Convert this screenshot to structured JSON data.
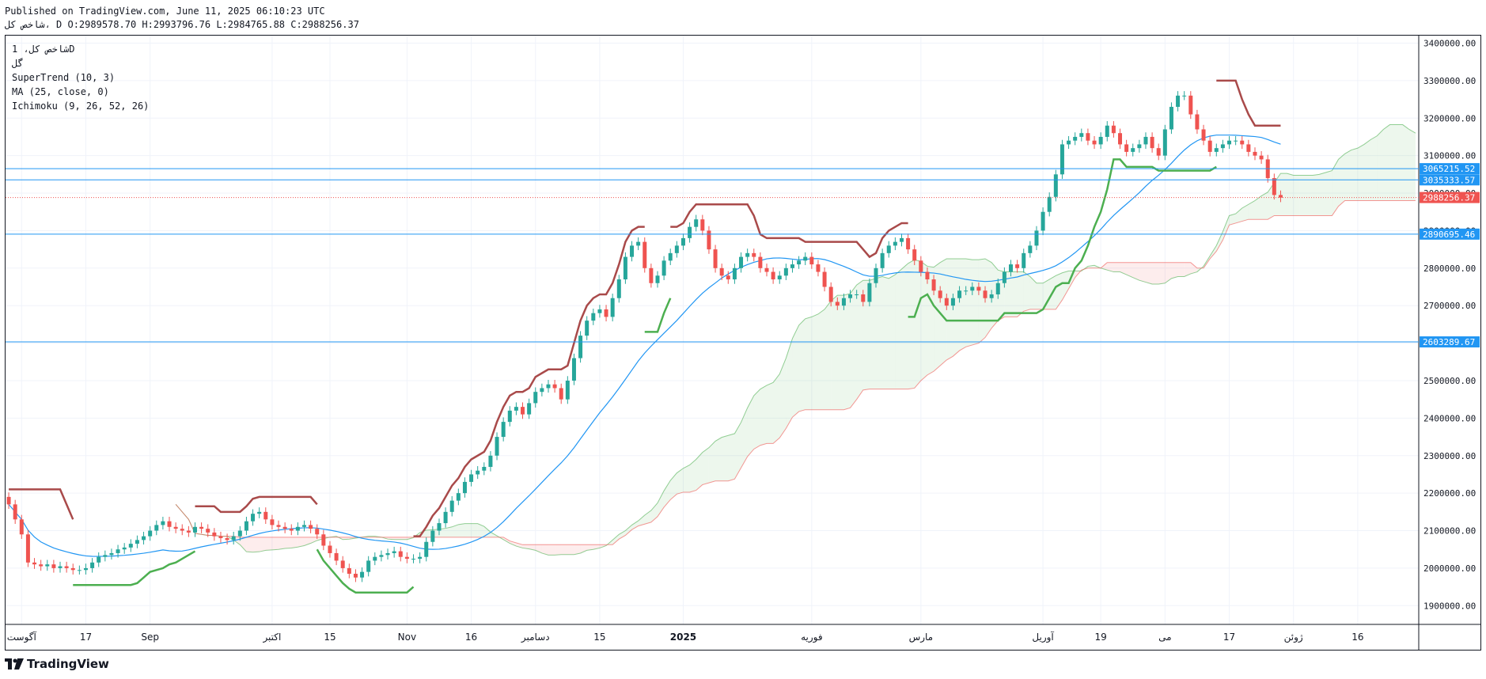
{
  "header": {
    "published": "Published on TradingView.com, June 11, 2025 06:10:23 UTC",
    "ohlc": "شاخص کل، D O:2989578.70 H:2993796.76 L:2984765.88 C:2988256.37"
  },
  "legend": {
    "symbol": "شاخص کل، 1D",
    "exchange": "گل",
    "supertrend": "SuperTrend (10, 3)",
    "ma": "MA (25, close, 0)",
    "ichimoku": "Ichimoku (9, 26, 52, 26)"
  },
  "brand": {
    "name": "TradingView"
  },
  "colors": {
    "up": "#26a69a",
    "down": "#ef5350",
    "st_up": "#4caf50",
    "st_down": "#a94a4a",
    "ma": "#2196f3",
    "hline": "#2196f3",
    "cloud_bull": "#4caf50",
    "cloud_bear": "#ef5350"
  },
  "chart_data": {
    "type": "candlestick",
    "title": "",
    "ylim": [
      1850000,
      3420000
    ],
    "y_ticks": [
      "1900000.00",
      "2000000.00",
      "2100000.00",
      "2200000.00",
      "2300000.00",
      "2400000.00",
      "2500000.00",
      "2600000.00",
      "2700000.00",
      "2800000.00",
      "2900000.00",
      "3000000.00",
      "3100000.00",
      "3200000.00",
      "3300000.00",
      "3400000.00"
    ],
    "x_ticks": [
      {
        "label": "آگوست",
        "bar": 2
      },
      {
        "label": "17",
        "bar": 12
      },
      {
        "label": "Sep",
        "bar": 22
      },
      {
        "label": "اکتبر",
        "bar": 41
      },
      {
        "label": "15",
        "bar": 50
      },
      {
        "label": "Nov",
        "bar": 62
      },
      {
        "label": "16",
        "bar": 72
      },
      {
        "label": "دسامبر",
        "bar": 82
      },
      {
        "label": "15",
        "bar": 92
      },
      {
        "label": "2025",
        "bar": 105
      },
      {
        "label": "فوریه",
        "bar": 125
      },
      {
        "label": "مارس",
        "bar": 142
      },
      {
        "label": "آوریل",
        "bar": 161
      },
      {
        "label": "19",
        "bar": 170
      },
      {
        "label": "می",
        "bar": 180
      },
      {
        "label": "17",
        "bar": 190
      },
      {
        "label": "ژوئن",
        "bar": 200
      },
      {
        "label": "16",
        "bar": 210
      }
    ],
    "bar_count": 220,
    "last_bar": 204,
    "closes": [
      2170000,
      2130000,
      2090000,
      2015000,
      2010000,
      2005000,
      2010000,
      2000000,
      2005000,
      2000000,
      1995000,
      1995000,
      2000000,
      2015000,
      2030000,
      2035000,
      2040000,
      2050000,
      2055000,
      2065000,
      2075000,
      2085000,
      2100000,
      2115000,
      2125000,
      2110000,
      2105000,
      2100000,
      2095000,
      2110000,
      2105000,
      2095000,
      2085000,
      2080000,
      2075000,
      2085000,
      2100000,
      2125000,
      2145000,
      2150000,
      2130000,
      2115000,
      2110000,
      2105000,
      2100000,
      2110000,
      2115000,
      2105000,
      2090000,
      2060000,
      2040000,
      2020000,
      2000000,
      1985000,
      1975000,
      1990000,
      2020000,
      2030000,
      2035000,
      2040000,
      2045000,
      2030000,
      2025000,
      2025000,
      2030000,
      2070000,
      2100000,
      2120000,
      2150000,
      2180000,
      2200000,
      2230000,
      2250000,
      2260000,
      2270000,
      2300000,
      2350000,
      2390000,
      2420000,
      2430000,
      2410000,
      2440000,
      2470000,
      2480000,
      2490000,
      2480000,
      2450000,
      2500000,
      2560000,
      2620000,
      2660000,
      2680000,
      2690000,
      2670000,
      2720000,
      2770000,
      2830000,
      2860000,
      2870000,
      2800000,
      2760000,
      2780000,
      2820000,
      2840000,
      2860000,
      2880000,
      2910000,
      2930000,
      2900000,
      2850000,
      2800000,
      2780000,
      2770000,
      2800000,
      2830000,
      2840000,
      2830000,
      2800000,
      2790000,
      2770000,
      2780000,
      2800000,
      2810000,
      2820000,
      2830000,
      2810000,
      2790000,
      2750000,
      2710000,
      2700000,
      2720000,
      2730000,
      2730000,
      2710000,
      2760000,
      2800000,
      2840000,
      2860000,
      2870000,
      2880000,
      2850000,
      2820000,
      2790000,
      2770000,
      2740000,
      2720000,
      2700000,
      2720000,
      2740000,
      2740000,
      2750000,
      2740000,
      2720000,
      2730000,
      2760000,
      2790000,
      2810000,
      2800000,
      2840000,
      2860000,
      2900000,
      2950000,
      2990000,
      3050000,
      3130000,
      3140000,
      3150000,
      3160000,
      3140000,
      3130000,
      3150000,
      3180000,
      3160000,
      3130000,
      3110000,
      3120000,
      3130000,
      3150000,
      3120000,
      3100000,
      3170000,
      3230000,
      3260000,
      3260000,
      3210000,
      3170000,
      3140000,
      3110000,
      3120000,
      3130000,
      3140000,
      3140000,
      3130000,
      3110000,
      3100000,
      3090000,
      3040000,
      2995000,
      2988000
    ],
    "opens_note": "",
    "supertrend": {
      "segments": [
        {
          "dir": "down",
          "from": 0,
          "to": 10
        },
        {
          "dir": "up",
          "from": 10,
          "to": 29
        },
        {
          "dir": "down",
          "from": 29,
          "to": 48
        },
        {
          "dir": "up",
          "from": 48,
          "to": 63
        },
        {
          "dir": "down",
          "from": 63,
          "to": 99
        },
        {
          "dir": "up",
          "from": 99,
          "to": 103
        },
        {
          "dir": "down",
          "from": 103,
          "to": 140
        },
        {
          "dir": "up",
          "from": 140,
          "to": 188
        },
        {
          "dir": "down",
          "from": 188,
          "to": 204
        }
      ]
    },
    "horizontal_levels": [
      3065215.52,
      3035333.57,
      2890695.46,
      2603289.67
    ],
    "last_price": 2988256.37
  }
}
